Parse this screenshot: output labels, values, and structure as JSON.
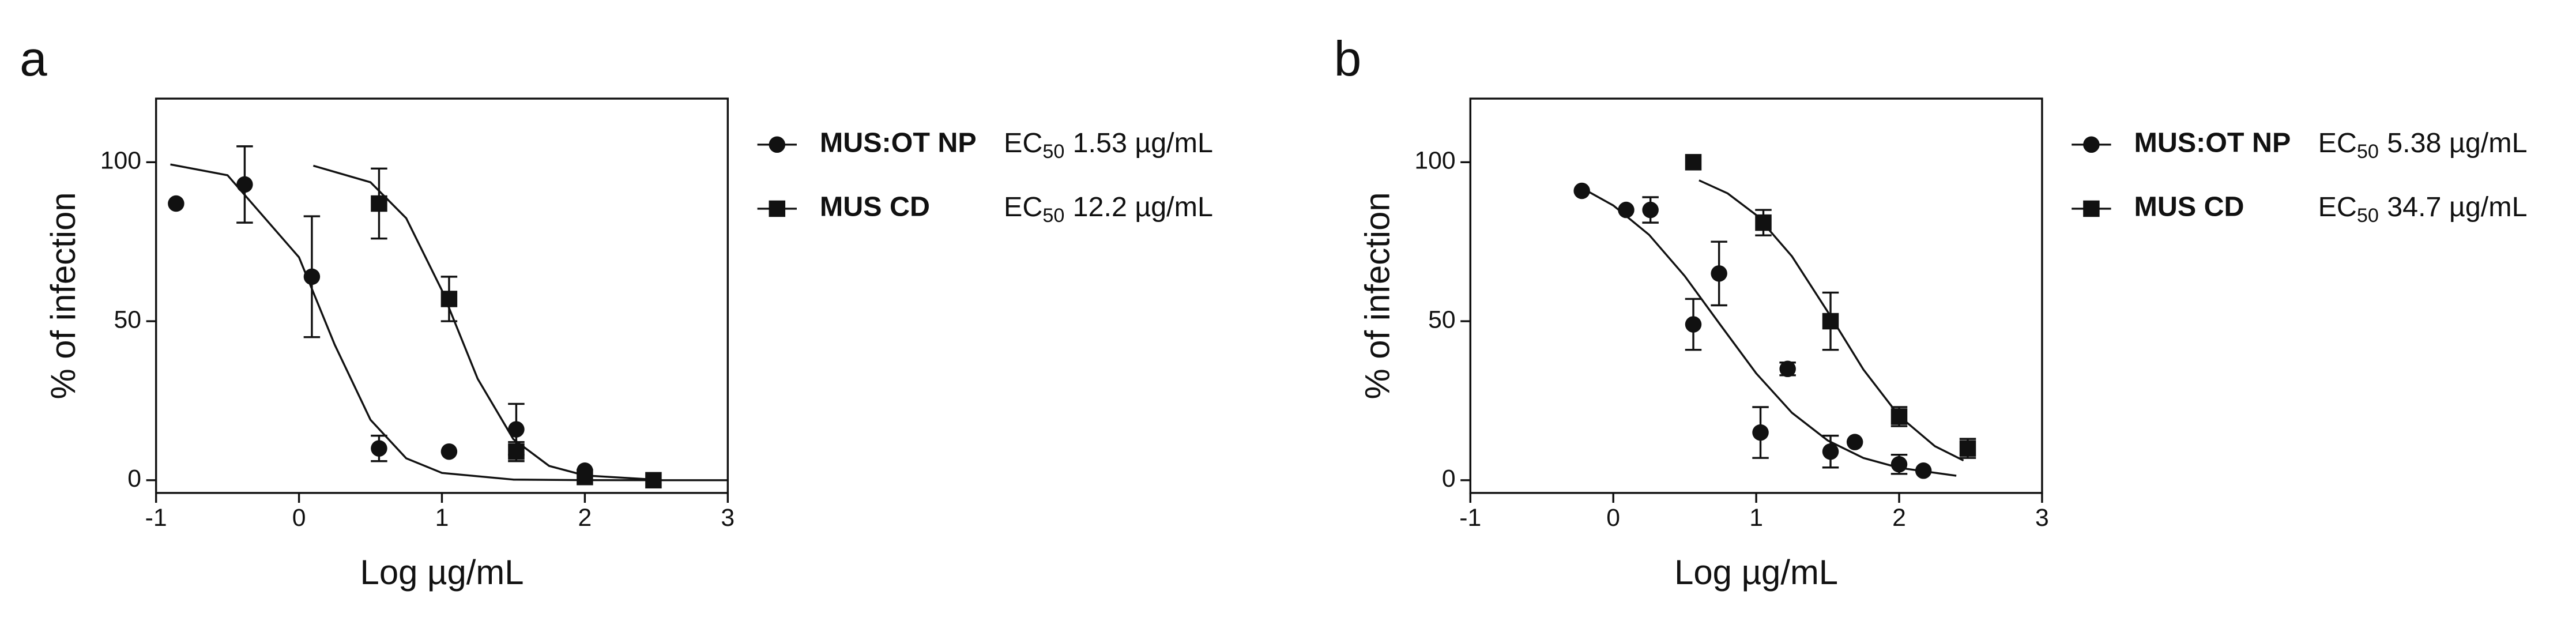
{
  "chart_data": [
    {
      "type": "scatter",
      "panel_label": "a",
      "x_label": "Log µg/mL",
      "y_label": "% of infection",
      "ec_prefix": "EC",
      "ec_sub": "50",
      "xlim": [
        -1,
        3
      ],
      "xticks": [
        -1,
        0,
        1,
        2,
        3
      ],
      "ylim": [
        -4,
        120
      ],
      "yticks": [
        0,
        50,
        100
      ],
      "series": [
        {
          "name": "MUS:OT NP",
          "marker": "circle",
          "color": "#111111",
          "ec50_label": "1.53 µg/mL",
          "x": [
            -0.86,
            -0.38,
            0.09,
            0.56,
            1.05,
            1.52,
            2.0
          ],
          "values": [
            87,
            93,
            64,
            10,
            9,
            16,
            3
          ],
          "errors": [
            null,
            12,
            19,
            4,
            null,
            8,
            null
          ]
        },
        {
          "name": "MUS CD",
          "marker": "square",
          "color": "#111111",
          "ec50_label": "12.2 µg/mL",
          "x": [
            0.56,
            1.05,
            1.52,
            2.0,
            2.48
          ],
          "values": [
            87,
            57,
            9,
            1,
            0
          ],
          "errors": [
            11,
            7,
            3,
            null,
            null
          ]
        }
      ],
      "curves": [
        {
          "x": [
            -0.9,
            -0.5,
            0,
            0.25,
            0.5,
            0.75,
            1,
            1.5,
            2,
            3
          ],
          "values": [
            99.3,
            95.9,
            70.1,
            42.6,
            19.0,
            6.9,
            2.3,
            0.2,
            0.02,
            0
          ]
        },
        {
          "x": [
            0.1,
            0.5,
            0.75,
            1,
            1.25,
            1.5,
            1.75,
            2,
            2.5
          ],
          "values": [
            98.9,
            93.7,
            82.4,
            59.7,
            31.9,
            12.9,
            4.5,
            1.5,
            0.15
          ]
        }
      ]
    },
    {
      "type": "scatter",
      "panel_label": "b",
      "x_label": "Log µg/mL",
      "y_label": "% of infection",
      "ec_prefix": "EC",
      "ec_sub": "50",
      "xlim": [
        -1,
        3
      ],
      "xticks": [
        -1,
        0,
        1,
        2,
        3
      ],
      "ylim": [
        -4,
        120
      ],
      "yticks": [
        0,
        50,
        100
      ],
      "series": [
        {
          "name": "MUS:OT NP",
          "marker": "circle",
          "color": "#111111",
          "ec50_label": "5.38 µg/mL",
          "x": [
            -0.22,
            0.09,
            0.26,
            0.56,
            0.74,
            1.03,
            1.22,
            1.52,
            1.69,
            2.0,
            2.17
          ],
          "values": [
            91,
            85,
            85,
            49,
            65,
            15,
            35,
            9,
            12,
            5,
            3
          ],
          "errors": [
            null,
            null,
            4,
            8,
            10,
            8,
            2,
            5,
            null,
            3,
            null
          ]
        },
        {
          "name": "MUS CD",
          "marker": "square",
          "color": "#111111",
          "ec50_label": "34.7 µg/mL",
          "x": [
            0.56,
            1.05,
            1.52,
            2.0,
            2.48
          ],
          "values": [
            100,
            81,
            50,
            20,
            10
          ],
          "errors": [
            null,
            4,
            9,
            3,
            3
          ]
        }
      ],
      "curves": [
        {
          "x": [
            -0.2,
            0,
            0.25,
            0.5,
            0.75,
            1,
            1.25,
            1.5,
            1.75,
            2,
            2.4
          ],
          "values": [
            91.4,
            86.4,
            77.2,
            64.2,
            48.8,
            33.6,
            21.2,
            12.5,
            7.0,
            3.9,
            1.4
          ]
        },
        {
          "x": [
            0.6,
            0.8,
            1,
            1.25,
            1.5,
            1.75,
            2,
            2.25,
            2.45
          ],
          "values": [
            94.3,
            90.2,
            83.4,
            70.4,
            53.0,
            34.8,
            20.2,
            10.7,
            6.2
          ]
        }
      ]
    }
  ]
}
